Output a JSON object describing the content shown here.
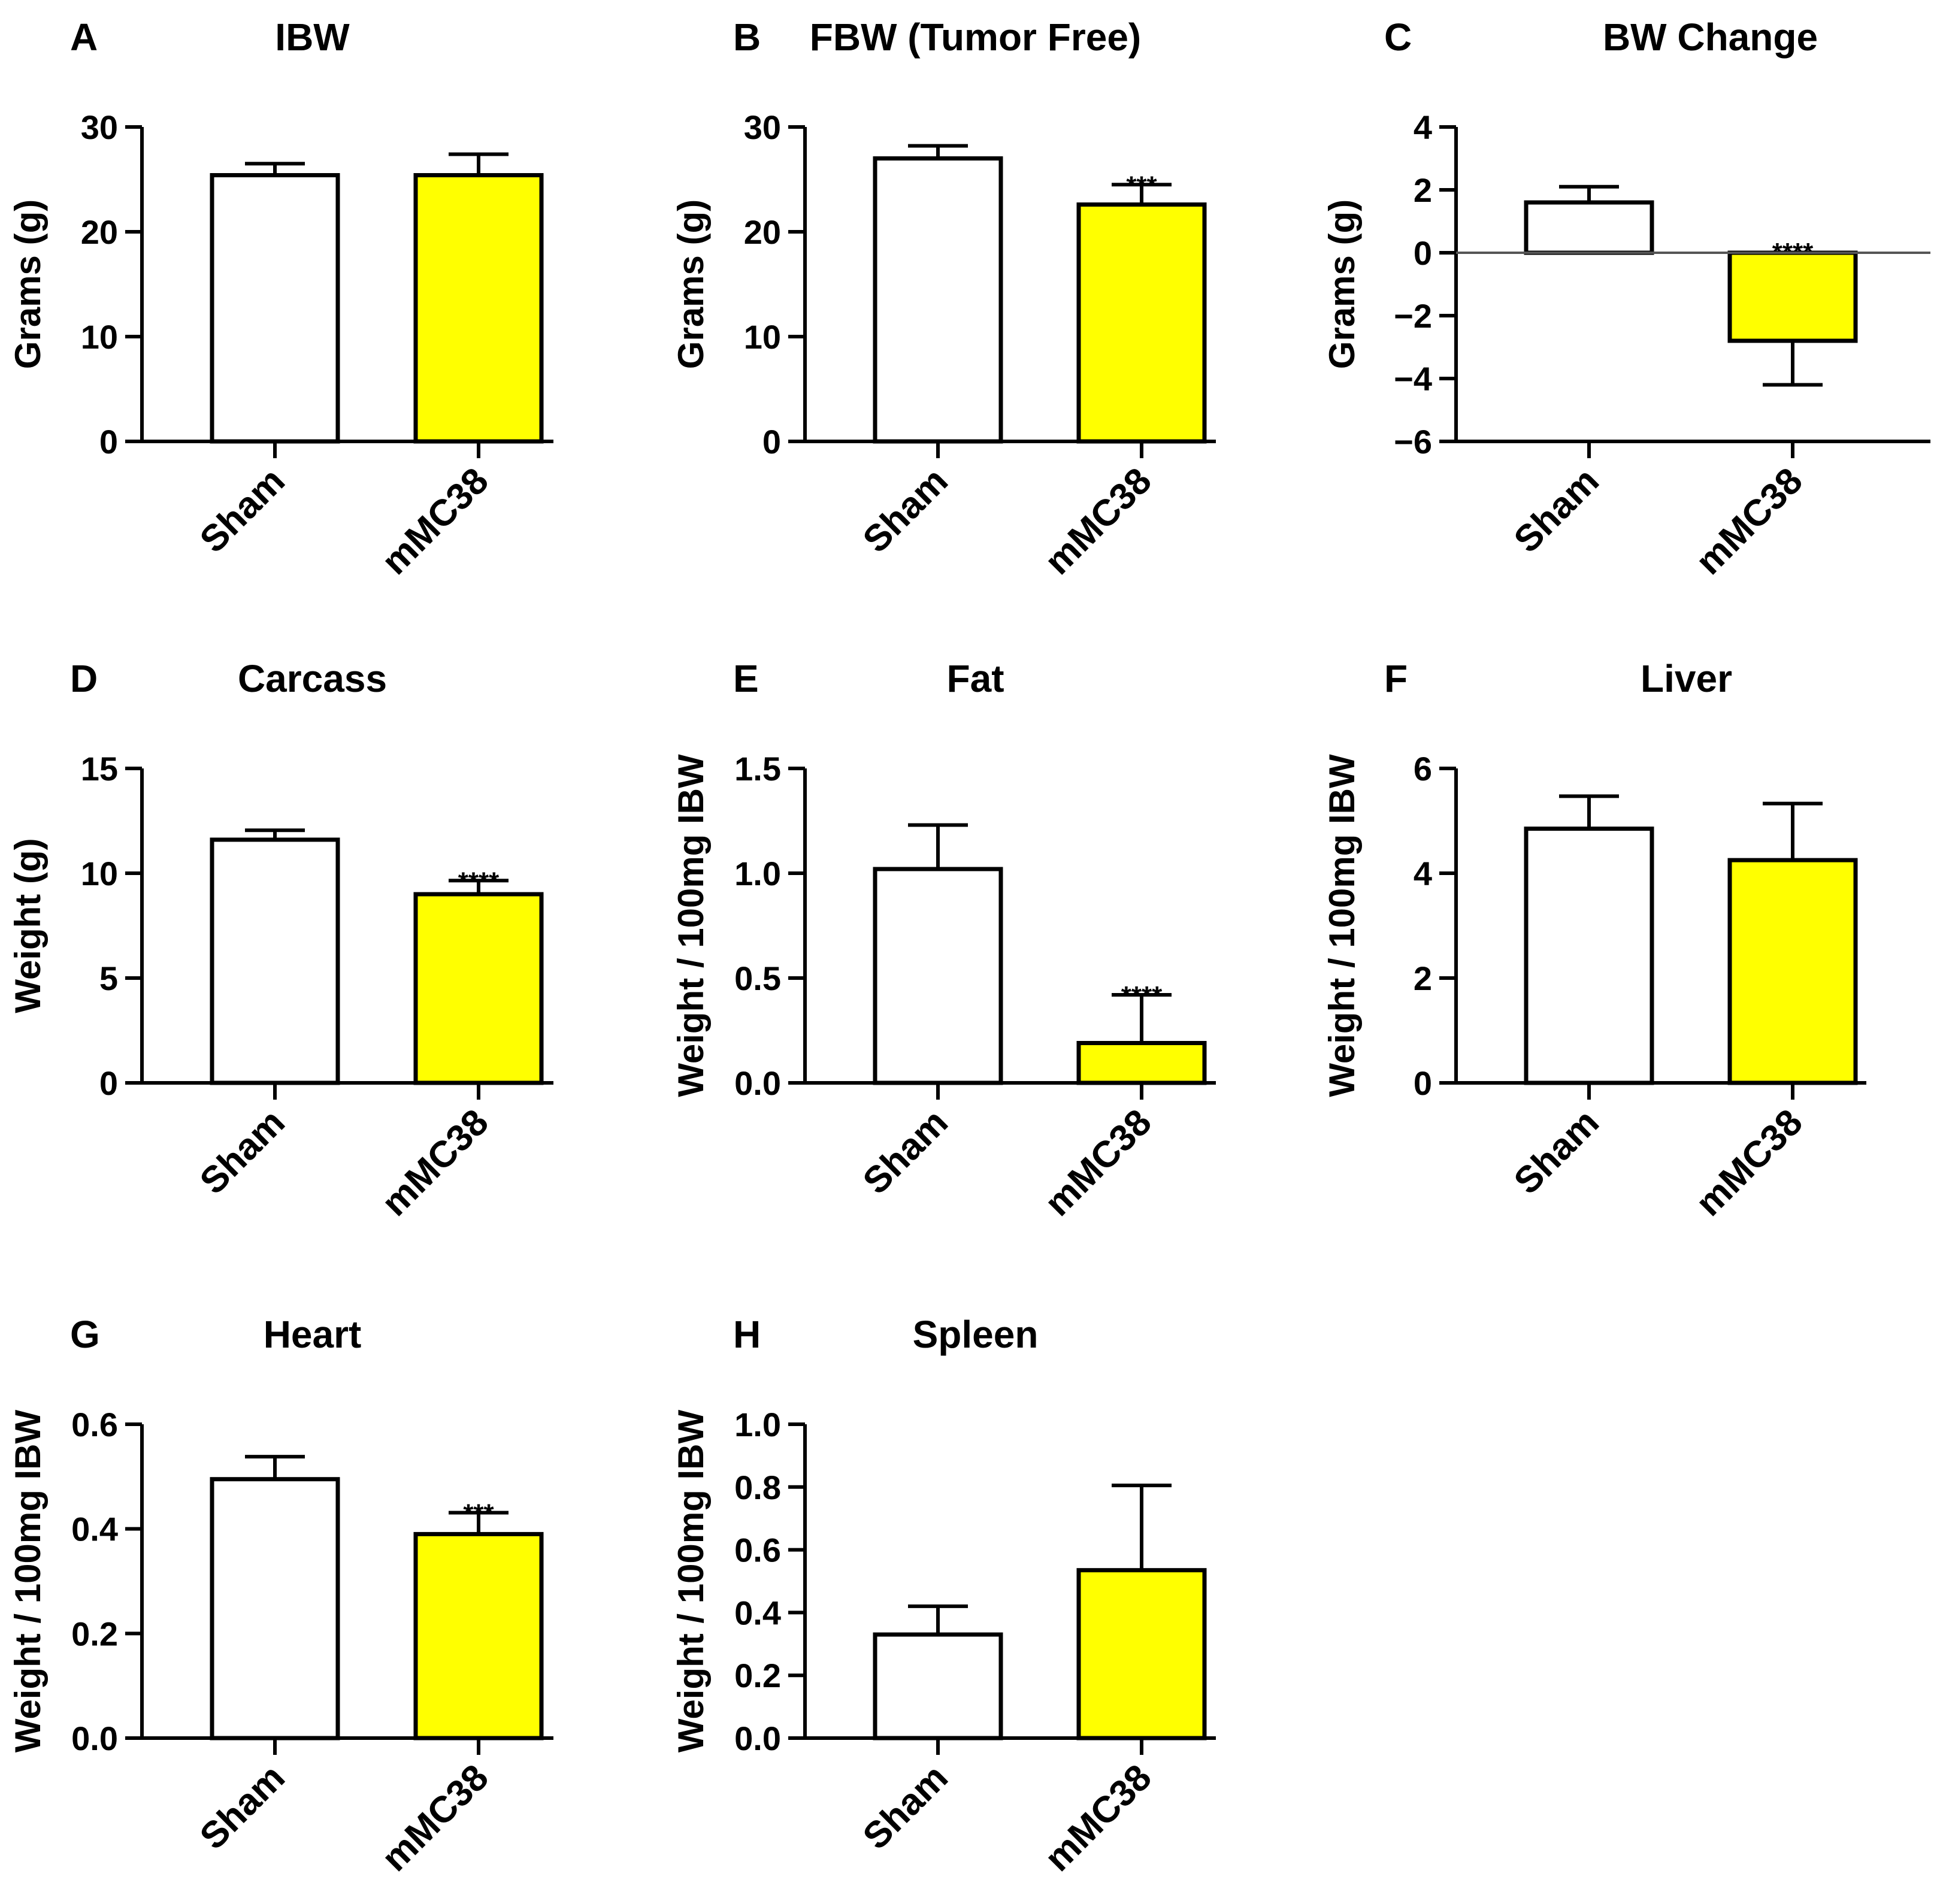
{
  "chart_data": [
    {
      "panel": "A",
      "type": "bar",
      "title": "IBW",
      "ylabel": "Grams (g)",
      "ylim": [
        0,
        30
      ],
      "yticks": [
        0,
        10,
        20,
        30
      ],
      "ytick_labels": [
        "0",
        "10",
        "20",
        "30"
      ],
      "categories": [
        "Sham",
        "mMC38"
      ],
      "values": [
        25.4,
        25.4
      ],
      "errors": [
        1.1,
        2.0
      ],
      "significance": [
        "",
        ""
      ],
      "colors": [
        "#ffffff",
        "#ffff00"
      ]
    },
    {
      "panel": "B",
      "type": "bar",
      "title": "FBW (Tumor Free)",
      "ylabel": "Grams (g)",
      "ylim": [
        0,
        30
      ],
      "yticks": [
        0,
        10,
        20,
        30
      ],
      "ytick_labels": [
        "0",
        "10",
        "20",
        "30"
      ],
      "categories": [
        "Sham",
        "mMC38"
      ],
      "values": [
        27.0,
        22.6
      ],
      "errors": [
        1.2,
        1.9
      ],
      "significance": [
        "",
        "***"
      ],
      "colors": [
        "#ffffff",
        "#ffff00"
      ]
    },
    {
      "panel": "C",
      "type": "bar",
      "title": "BW Change",
      "ylabel": "Grams (g)",
      "ylim": [
        -6,
        4
      ],
      "yticks": [
        -6,
        -4,
        -2,
        0,
        2,
        4
      ],
      "ytick_labels": [
        "−6",
        "−4",
        "−2",
        "0",
        "2",
        "4"
      ],
      "categories": [
        "Sham",
        "mMC38"
      ],
      "values": [
        1.6,
        -2.8
      ],
      "errors": [
        0.5,
        1.4
      ],
      "significance": [
        "",
        "****"
      ],
      "colors": [
        "#ffffff",
        "#ffff00"
      ]
    },
    {
      "panel": "D",
      "type": "bar",
      "title": "Carcass",
      "ylabel": "Weight (g)",
      "ylim": [
        0,
        15
      ],
      "yticks": [
        0,
        5,
        10,
        15
      ],
      "ytick_labels": [
        "0",
        "5",
        "10",
        "15"
      ],
      "categories": [
        "Sham",
        "mMC38"
      ],
      "values": [
        11.6,
        9.0
      ],
      "errors": [
        0.45,
        0.65
      ],
      "significance": [
        "",
        "****"
      ],
      "colors": [
        "#ffffff",
        "#ffff00"
      ]
    },
    {
      "panel": "E",
      "type": "bar",
      "title": "Fat",
      "ylabel": "Weight / 100mg IBW",
      "ylim": [
        0,
        1.5
      ],
      "yticks": [
        0,
        0.5,
        1.0,
        1.5
      ],
      "ytick_labels": [
        "0.0",
        "0.5",
        "1.0",
        "1.5"
      ],
      "categories": [
        "Sham",
        "mMC38"
      ],
      "values": [
        1.02,
        0.19
      ],
      "errors": [
        0.21,
        0.23
      ],
      "significance": [
        "",
        "****"
      ],
      "colors": [
        "#ffffff",
        "#ffff00"
      ]
    },
    {
      "panel": "F",
      "type": "bar",
      "title": "Liver",
      "ylabel": "Weight / 100mg IBW",
      "ylim": [
        0,
        6
      ],
      "yticks": [
        0,
        2,
        4,
        6
      ],
      "ytick_labels": [
        "0",
        "2",
        "4",
        "6"
      ],
      "categories": [
        "Sham",
        "mMC38"
      ],
      "values": [
        4.85,
        4.25
      ],
      "errors": [
        0.62,
        1.08
      ],
      "significance": [
        "",
        ""
      ],
      "colors": [
        "#ffffff",
        "#ffff00"
      ]
    },
    {
      "panel": "G",
      "type": "bar",
      "title": "Heart",
      "ylabel": "Weight / 100mg IBW",
      "ylim": [
        0,
        0.6
      ],
      "yticks": [
        0,
        0.2,
        0.4,
        0.6
      ],
      "ytick_labels": [
        "0.0",
        "0.2",
        "0.4",
        "0.6"
      ],
      "categories": [
        "Sham",
        "mMC38"
      ],
      "values": [
        0.495,
        0.39
      ],
      "errors": [
        0.043,
        0.041
      ],
      "significance": [
        "",
        "***"
      ],
      "colors": [
        "#ffffff",
        "#ffff00"
      ]
    },
    {
      "panel": "H",
      "type": "bar",
      "title": "Spleen",
      "ylabel": "Weight / 100mg IBW",
      "ylim": [
        0,
        1.0
      ],
      "yticks": [
        0,
        0.2,
        0.4,
        0.6,
        0.8,
        1.0
      ],
      "ytick_labels": [
        "0.0",
        "0.2",
        "0.4",
        "0.6",
        "0.8",
        "1.0"
      ],
      "categories": [
        "Sham",
        "mMC38"
      ],
      "values": [
        0.33,
        0.535
      ],
      "errors": [
        0.09,
        0.27
      ],
      "significance": [
        "",
        ""
      ],
      "colors": [
        "#ffffff",
        "#ffff00"
      ]
    }
  ]
}
